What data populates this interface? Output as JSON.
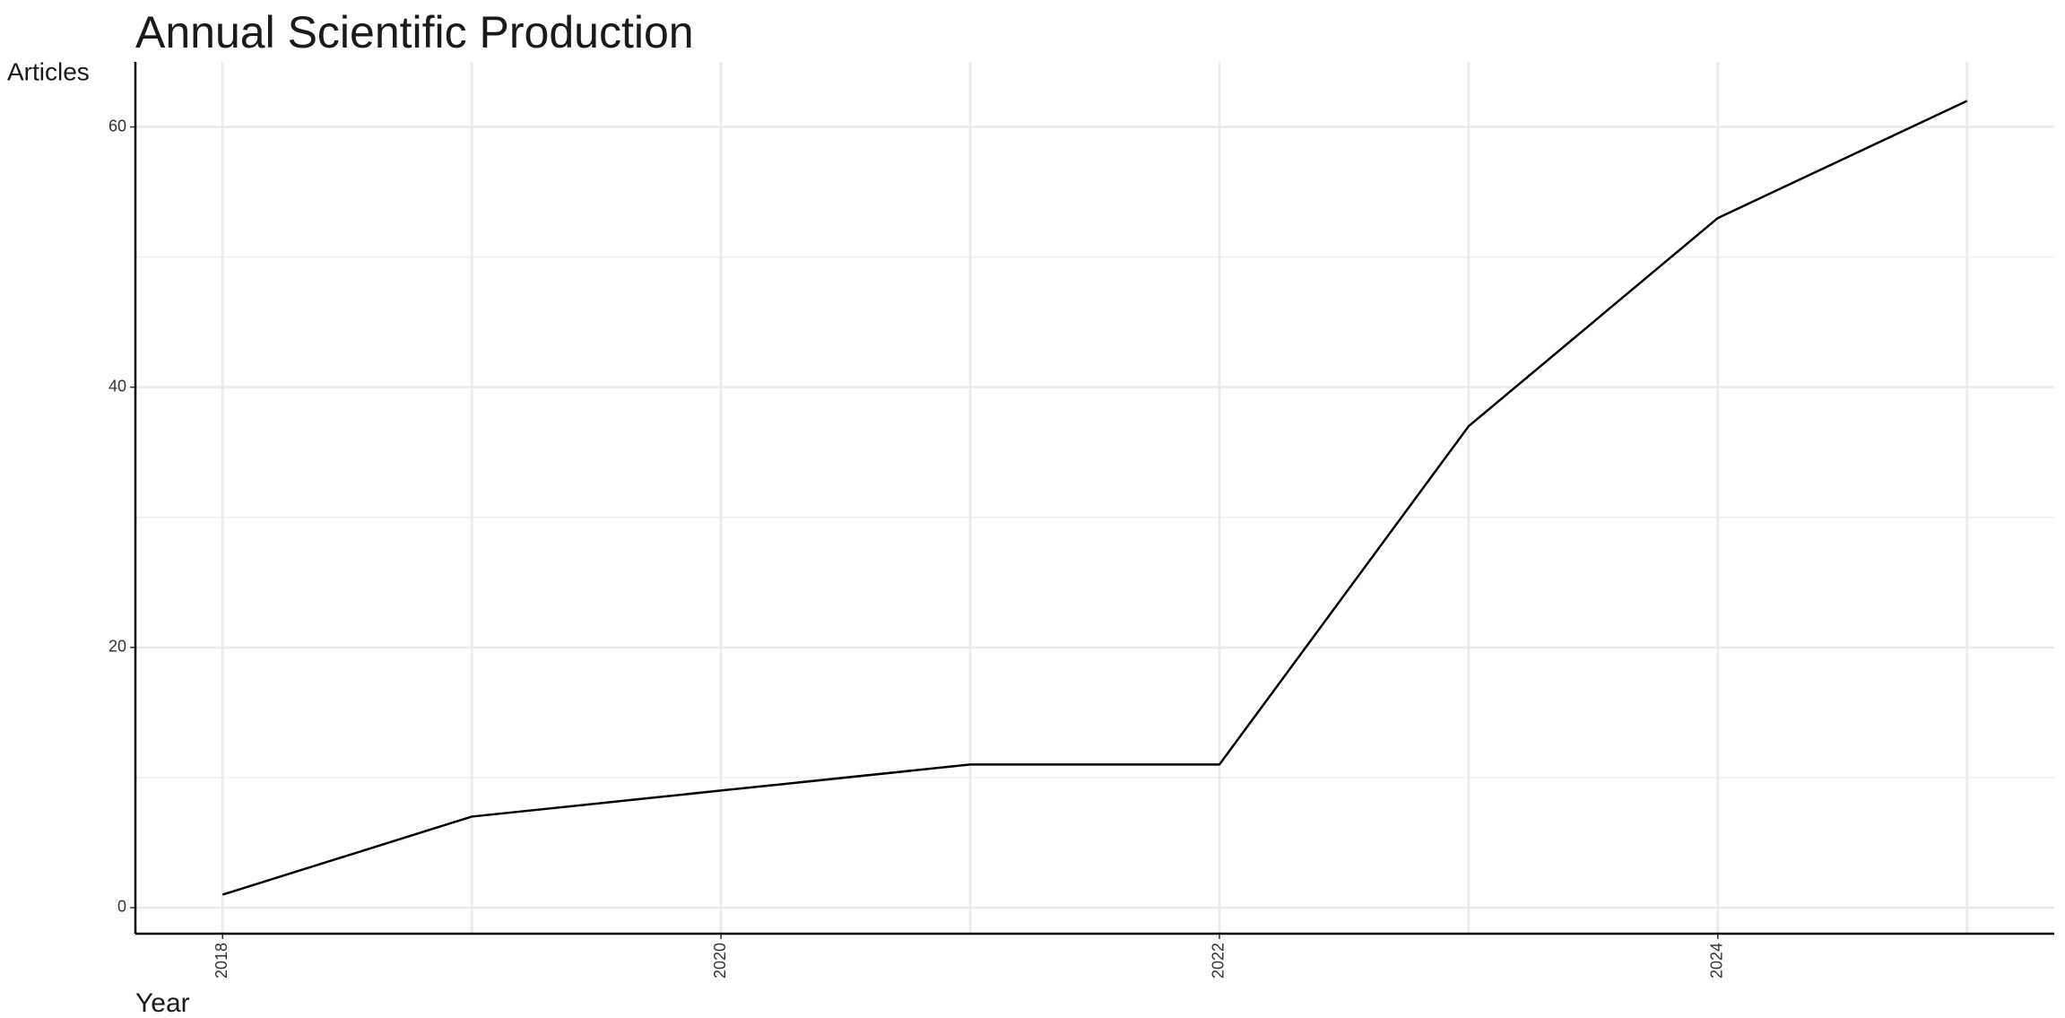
{
  "chart_data": {
    "type": "line",
    "title": "Annual Scientific Production",
    "x_label": "Year",
    "y_label": "Articles",
    "x": [
      2018,
      2019,
      2020,
      2021,
      2022,
      2023,
      2024,
      2025
    ],
    "values": [
      1,
      7,
      9,
      11,
      11,
      37,
      53,
      62
    ],
    "color": "#000000",
    "xlim": [
      2017.65,
      2025.35
    ],
    "xticks": [
      2018,
      2020,
      2022,
      2024
    ],
    "x_minor_grid": [
      2019,
      2021,
      2023,
      2025
    ],
    "ylim": [
      -2,
      65
    ],
    "yticks": [
      0,
      20,
      40,
      60
    ],
    "y_minor_grid": [
      10,
      30,
      50
    ],
    "grid": true
  }
}
